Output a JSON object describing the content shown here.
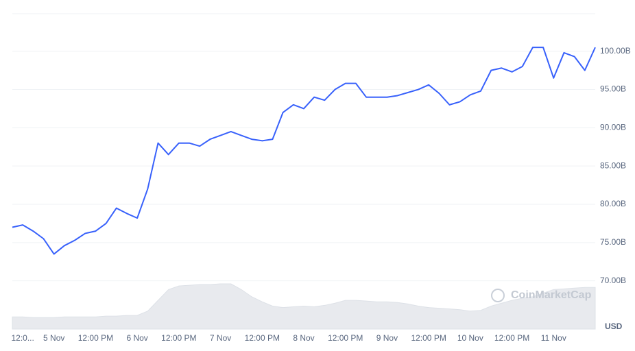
{
  "chart_data": {
    "type": "line",
    "watermark": "CoinMarketCap",
    "currency": "USD",
    "categories": [
      null,
      "12:0...",
      null,
      null,
      "5 Nov",
      null,
      null,
      null,
      "12:00 PM",
      null,
      null,
      null,
      "6 Nov",
      null,
      null,
      null,
      "12:00 PM",
      null,
      null,
      null,
      "7 Nov",
      null,
      null,
      null,
      "12:00 PM",
      null,
      null,
      null,
      "8 Nov",
      null,
      null,
      null,
      "12:00 PM",
      null,
      null,
      null,
      "9 Nov",
      null,
      null,
      null,
      "12:00 PM",
      null,
      null,
      null,
      "10 Nov",
      null,
      null,
      null,
      "12:00 PM",
      null,
      null,
      null,
      "11 Nov",
      null,
      null,
      null,
      null
    ],
    "series": [
      {
        "color": "#3861fb",
        "values": [
          77.0,
          77.3,
          76.5,
          75.5,
          73.5,
          74.6,
          75.3,
          76.2,
          76.5,
          77.5,
          79.5,
          78.8,
          78.2,
          82,
          88,
          86.5,
          88,
          88,
          87.6,
          88.5,
          89,
          89.5,
          89,
          88.5,
          88.3,
          88.5,
          92,
          93,
          92.5,
          94,
          93.6,
          95,
          95.8,
          95.8,
          94,
          94,
          94,
          94.2,
          94.6,
          95,
          95.6,
          94.5,
          93,
          93.4,
          94.3,
          94.8,
          97.5,
          97.8,
          97.3,
          98,
          100.5,
          100.5,
          96.5,
          99.8,
          99.3,
          97.5,
          100.5
        ]
      }
    ],
    "volume": {
      "color": "#e8eaee",
      "values": [
        17,
        17,
        16,
        16,
        16,
        17,
        17,
        17,
        17,
        18,
        18,
        19,
        19,
        25,
        40,
        55,
        60,
        61,
        62,
        62,
        63,
        63,
        55,
        45,
        38,
        32,
        30,
        31,
        32,
        31,
        33,
        36,
        40,
        40,
        39,
        38,
        38,
        37,
        35,
        32,
        30,
        29,
        28,
        27,
        25,
        26,
        32,
        36,
        40,
        43,
        45,
        50,
        55,
        56,
        57,
        58,
        58
      ]
    },
    "ylim": [
      63.7,
      104.9
    ],
    "yticks": [
      {
        "value": 70,
        "label": "70.00B"
      },
      {
        "value": 75,
        "label": "75.00B"
      },
      {
        "value": 80,
        "label": "80.00B"
      },
      {
        "value": 85,
        "label": "85.00B"
      },
      {
        "value": 90,
        "label": "90.00B"
      },
      {
        "value": 95,
        "label": "95.00B"
      },
      {
        "value": 100,
        "label": "100.00B"
      }
    ],
    "grid": true
  }
}
